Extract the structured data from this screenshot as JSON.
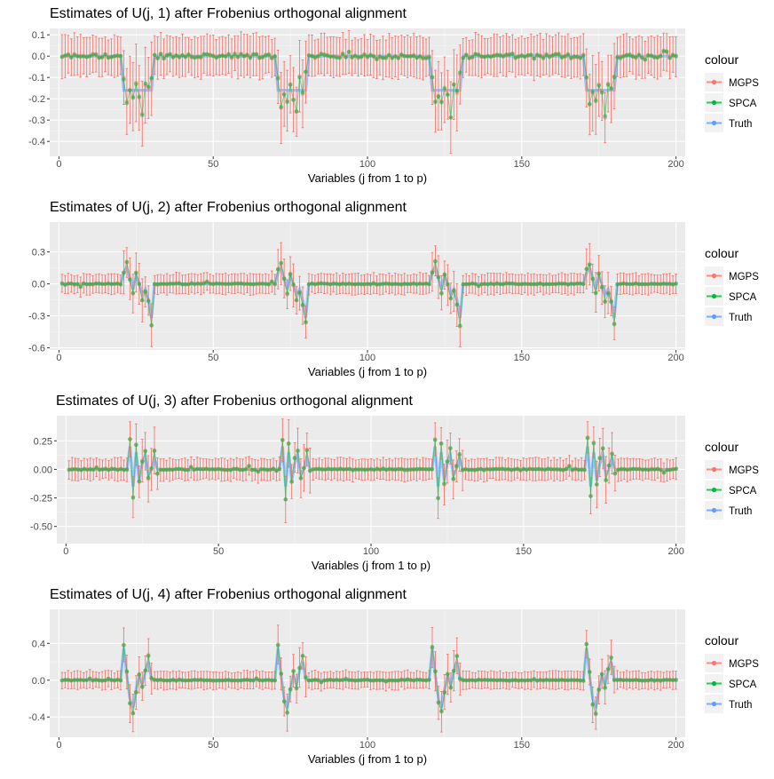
{
  "legend": {
    "title": "colour",
    "items": [
      {
        "label": "MGPS",
        "color": "#F8766D"
      },
      {
        "label": "SPCA",
        "color": "#00BA38"
      },
      {
        "label": "Truth",
        "color": "#619CFF"
      }
    ]
  },
  "chart_data": [
    {
      "type": "errorbar-line",
      "title": "Estimates of U(j, 1) after Frobenius orthogonal alignment",
      "xlabel": "Variables (j from 1 to p)",
      "ylabel": "",
      "xlim": [
        -3,
        203
      ],
      "ylim": [
        -0.47,
        0.13
      ],
      "xticks": [
        0,
        50,
        100,
        150,
        200
      ],
      "yticks": [
        0.1,
        0.0,
        -0.1,
        -0.2,
        -0.3,
        -0.4
      ],
      "ytick_labels": [
        "0.1",
        "0.0",
        "-0.1",
        "-0.2",
        "-0.3",
        "-0.4"
      ],
      "p": 200,
      "blocks": [
        [
          21,
          30
        ],
        [
          71,
          80
        ],
        [
          121,
          130
        ],
        [
          171,
          180
        ]
      ],
      "truth_block_values": [
        -0.16
      ],
      "spca_block_values": [
        -0.11,
        -0.22,
        -0.18,
        -0.2,
        -0.14,
        -0.19,
        -0.27,
        -0.12,
        -0.16,
        -0.09
      ],
      "background_halfwidth": 0.09,
      "block_halfwidth": 0.14,
      "null_scatter": 0.02
    },
    {
      "type": "errorbar-line",
      "title": "Estimates of U(j, 2) after Frobenius orthogonal alignment",
      "xlabel": "Variables (j from 1 to p)",
      "ylabel": "",
      "xlim": [
        -3,
        203
      ],
      "ylim": [
        -0.62,
        0.58
      ],
      "xticks": [
        0,
        50,
        100,
        150,
        200
      ],
      "yticks": [
        0.3,
        0.0,
        -0.3,
        -0.6
      ],
      "ytick_labels": [
        "0.3",
        "0.0",
        "-0.3",
        "-0.6"
      ],
      "p": 200,
      "blocks": [
        [
          21,
          30
        ],
        [
          71,
          80
        ],
        [
          121,
          130
        ],
        [
          171,
          180
        ]
      ],
      "truth_block_values": [
        0.1,
        0.15,
        0.05,
        -0.05,
        0.08,
        0.0,
        -0.1,
        -0.05,
        -0.15,
        -0.32
      ],
      "spca_block_values": [
        0.12,
        0.2,
        0.05,
        -0.08,
        0.1,
        -0.02,
        -0.15,
        -0.08,
        -0.18,
        -0.38
      ],
      "background_halfwidth": 0.09,
      "block_halfwidth": 0.16,
      "null_scatter": 0.01
    },
    {
      "type": "errorbar-line",
      "title": "Estimates of U(j, 3) after Frobenius orthogonal alignment",
      "xlabel": "Variables (j from 1 to p)",
      "ylabel": "",
      "xlim": [
        -3,
        203
      ],
      "ylim": [
        -0.65,
        0.47
      ],
      "xticks": [
        0,
        50,
        100,
        150,
        200
      ],
      "yticks": [
        0.25,
        0.0,
        -0.25,
        -0.5
      ],
      "ytick_labels": [
        "0.25",
        "0.00",
        "-0.25",
        "-0.50"
      ],
      "p": 200,
      "blocks": [
        [
          21,
          30
        ],
        [
          71,
          80
        ],
        [
          121,
          130
        ],
        [
          171,
          180
        ]
      ],
      "truth_block_values": [
        0.2,
        -0.15,
        0.15,
        -0.1,
        0.05,
        0.12,
        -0.05,
        0.0,
        0.1,
        0.0
      ],
      "spca_block_values": [
        0.27,
        -0.25,
        0.22,
        -0.12,
        0.08,
        0.18,
        -0.08,
        0.02,
        0.15,
        -0.02
      ],
      "background_halfwidth": 0.09,
      "block_halfwidth": 0.16,
      "null_scatter": 0.01
    },
    {
      "type": "errorbar-line",
      "title": "Estimates of U(j, 4) after Frobenius orthogonal alignment",
      "xlabel": "Variables (j from 1 to p)",
      "ylabel": "",
      "xlim": [
        -3,
        203
      ],
      "ylim": [
        -0.62,
        0.77
      ],
      "xticks": [
        0,
        50,
        100,
        150,
        200
      ],
      "yticks": [
        0.4,
        0.0,
        -0.4
      ],
      "ytick_labels": [
        "0.4",
        "0.0",
        "-0.4"
      ],
      "p": 200,
      "blocks": [
        [
          21,
          30
        ],
        [
          71,
          80
        ],
        [
          121,
          130
        ],
        [
          171,
          180
        ]
      ],
      "truth_block_values": [
        0.35,
        0.05,
        -0.2,
        -0.3,
        -0.1,
        0.05,
        -0.05,
        0.1,
        0.2,
        0.0
      ],
      "spca_block_values": [
        0.38,
        0.08,
        -0.25,
        -0.35,
        -0.12,
        0.08,
        -0.08,
        0.12,
        0.25,
        0.02
      ],
      "background_halfwidth": 0.09,
      "block_halfwidth": 0.17,
      "null_scatter": 0.01
    }
  ]
}
